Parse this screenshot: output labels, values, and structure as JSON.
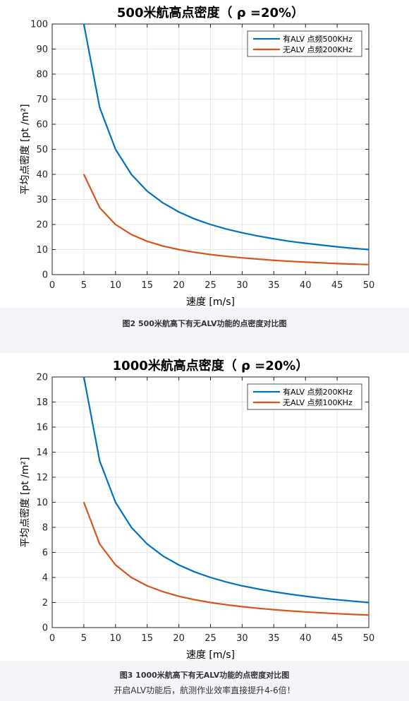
{
  "chart_data": [
    {
      "type": "line",
      "title": "500米航高点密度（ ρ =20%）",
      "xlabel": "速度 [m/s]",
      "ylabel": "平均点密度 [pt /m²]",
      "xlim": [
        0,
        50
      ],
      "ylim": [
        0,
        100
      ],
      "xticks": [
        0,
        5,
        10,
        15,
        20,
        25,
        30,
        35,
        40,
        45,
        50
      ],
      "yticks": [
        0,
        10,
        20,
        30,
        40,
        50,
        60,
        70,
        80,
        90,
        100
      ],
      "grid": true,
      "legend_position": "top-right",
      "x": [
        5,
        7.5,
        10,
        12.5,
        15,
        17.5,
        20,
        22.5,
        25,
        27.5,
        30,
        32.5,
        35,
        37.5,
        40,
        42.5,
        45,
        47.5,
        50
      ],
      "series": [
        {
          "name": "有ALV 点频500KHz",
          "color": "#0072bd",
          "values": [
            100,
            66.7,
            50,
            40,
            33.3,
            28.6,
            25,
            22.2,
            20,
            18.2,
            16.7,
            15.4,
            14.3,
            13.3,
            12.5,
            11.8,
            11.1,
            10.5,
            10
          ]
        },
        {
          "name": "无ALV 点频200KHz",
          "color": "#d95319",
          "values": [
            40,
            26.7,
            20,
            16,
            13.3,
            11.4,
            10,
            8.9,
            8,
            7.3,
            6.7,
            6.2,
            5.7,
            5.3,
            5,
            4.7,
            4.4,
            4.2,
            4
          ]
        }
      ]
    },
    {
      "type": "line",
      "title": "1000米航高点密度（ ρ =20%）",
      "xlabel": "速度 [m/s]",
      "ylabel": "平均点密度 [pt /m²]",
      "xlim": [
        0,
        50
      ],
      "ylim": [
        0,
        20
      ],
      "xticks": [
        0,
        5,
        10,
        15,
        20,
        25,
        30,
        35,
        40,
        45,
        50
      ],
      "yticks": [
        0,
        2,
        4,
        6,
        8,
        10,
        12,
        14,
        16,
        18,
        20
      ],
      "grid": true,
      "legend_position": "top-right",
      "x": [
        5,
        7.5,
        10,
        12.5,
        15,
        17.5,
        20,
        22.5,
        25,
        27.5,
        30,
        32.5,
        35,
        37.5,
        40,
        42.5,
        45,
        47.5,
        50
      ],
      "series": [
        {
          "name": "有ALV 点频200KHz",
          "color": "#0072bd",
          "values": [
            20,
            13.3,
            10,
            8,
            6.67,
            5.71,
            5,
            4.44,
            4,
            3.64,
            3.33,
            3.08,
            2.86,
            2.67,
            2.5,
            2.35,
            2.22,
            2.11,
            2
          ]
        },
        {
          "name": "无ALV 点频100KHz",
          "color": "#d95319",
          "values": [
            10,
            6.67,
            5,
            4,
            3.33,
            2.86,
            2.5,
            2.22,
            2,
            1.82,
            1.67,
            1.54,
            1.43,
            1.33,
            1.25,
            1.18,
            1.11,
            1.05,
            1
          ]
        }
      ]
    }
  ],
  "captions": {
    "fig2": "图2 500米航高下有无ALV功能的点密度对比图",
    "fig3": "图3 1000米航高下有无ALV功能的点密度对比图",
    "footnote": "开启ALV功能后，航测作业效率直接提升4-6倍！"
  }
}
